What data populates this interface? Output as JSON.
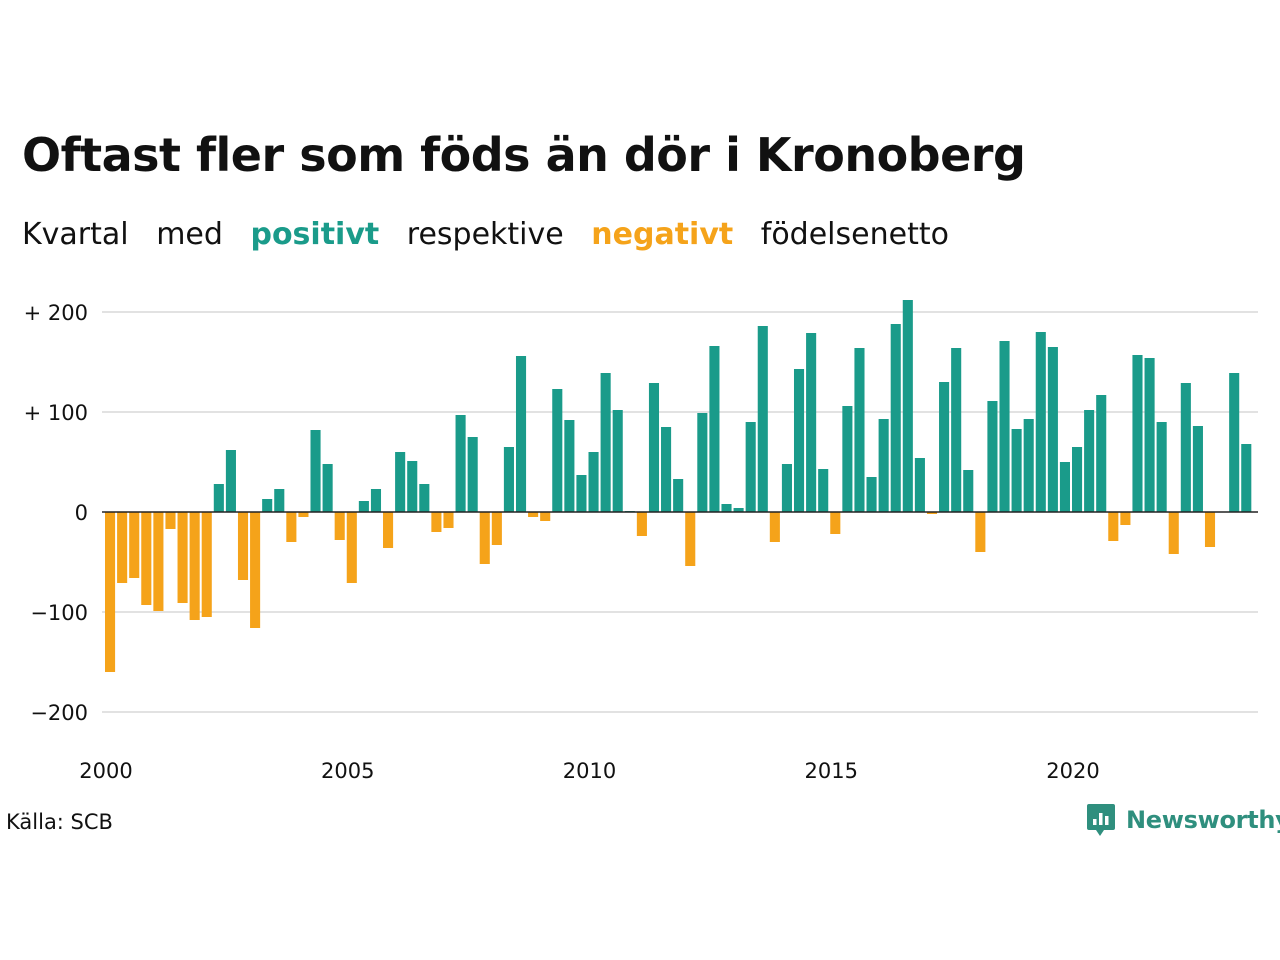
{
  "title": "Oftast fler som föds än dör i Kronoberg",
  "subtitle": {
    "part1": "Kvartal",
    "part2": "med",
    "positive_word": "positivt",
    "part3": "respektive",
    "negative_word": "negativt",
    "part4": "födelsenetto"
  },
  "source": "Källa: SCB",
  "brand": "Newsworthy",
  "colors": {
    "positive": "#1a9b8a",
    "negative": "#f5a31a",
    "grid": "#e2e2e2",
    "brand": "#2f8f7e"
  },
  "chart_data": {
    "type": "bar",
    "x_start": 2000,
    "periods_per_year": 4,
    "ylim": [
      -220,
      220
    ],
    "grid": true,
    "yticks": [
      {
        "value": 200,
        "label": "+ 200"
      },
      {
        "value": 100,
        "label": "+ 100"
      },
      {
        "value": 0,
        "label": "0"
      },
      {
        "value": -100,
        "label": "−100"
      },
      {
        "value": -200,
        "label": "−200"
      }
    ],
    "xticks": [
      {
        "value": 2000,
        "label": "2000"
      },
      {
        "value": 2005,
        "label": "2005"
      },
      {
        "value": 2010,
        "label": "2010"
      },
      {
        "value": 2015,
        "label": "2015"
      },
      {
        "value": 2020,
        "label": "2020"
      }
    ],
    "values": [
      -160,
      -71,
      -66,
      -93,
      -99,
      -17,
      -91,
      -108,
      -105,
      28,
      62,
      -68,
      -116,
      13,
      23,
      -30,
      -5,
      82,
      48,
      -28,
      -71,
      11,
      23,
      -36,
      60,
      51,
      28,
      -20,
      -16,
      97,
      75,
      -52,
      -33,
      65,
      156,
      -5,
      -9,
      123,
      92,
      37,
      60,
      139,
      102,
      1,
      -24,
      129,
      85,
      33,
      -54,
      99,
      166,
      8,
      4,
      90,
      186,
      -30,
      48,
      143,
      179,
      43,
      -22,
      106,
      164,
      35,
      93,
      188,
      212,
      54,
      -2,
      130,
      164,
      42,
      -40,
      111,
      171,
      83,
      93,
      180,
      165,
      50,
      65,
      102,
      117,
      -29,
      -13,
      157,
      154,
      90,
      -42,
      129,
      86,
      -35,
      0,
      139,
      68
    ]
  }
}
